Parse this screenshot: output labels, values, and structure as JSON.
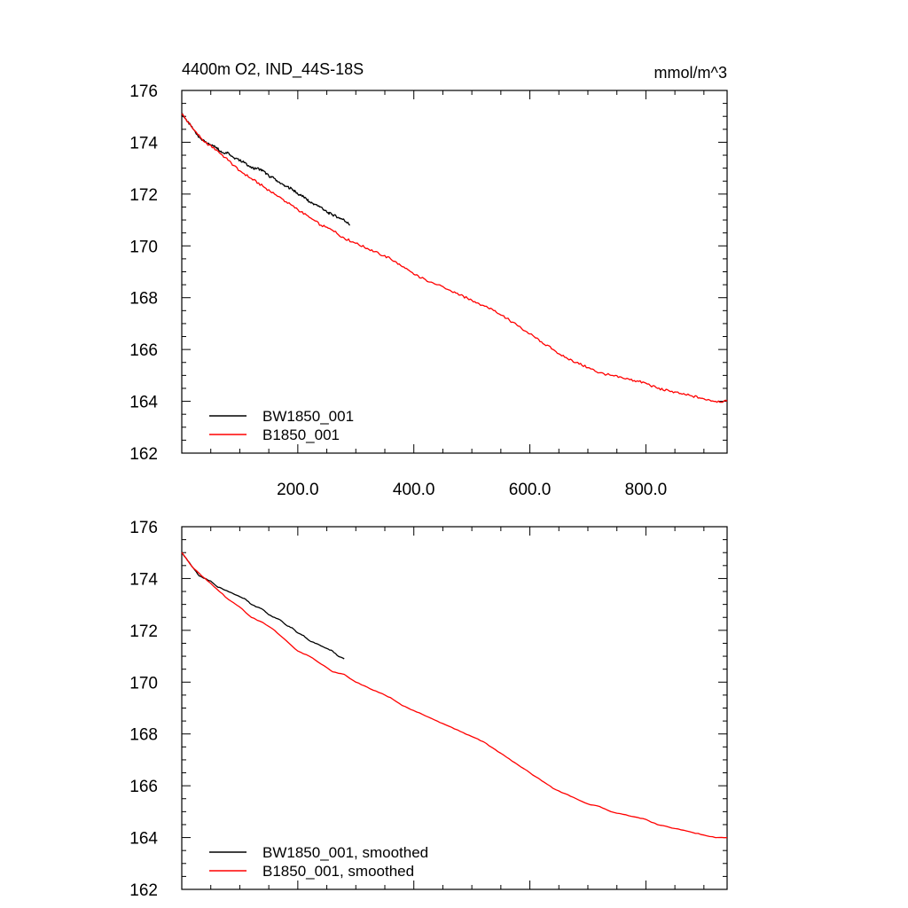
{
  "chart_data": [
    {
      "type": "line",
      "title": "4400m O2, IND_44S-18S",
      "units": "mmol/m^3",
      "xlabel": "",
      "ylabel": "",
      "xlim": [
        0,
        940
      ],
      "ylim": [
        162,
        176
      ],
      "y_ticks": [
        "176",
        "174",
        "172",
        "170",
        "168",
        "166",
        "164",
        "162"
      ],
      "x_ticks": [
        "200.0",
        "400.0",
        "600.0",
        "800.0"
      ],
      "legend_position": "bottom-left",
      "series": [
        {
          "name": "BW1850_001",
          "color": "#000000",
          "x": [
            0,
            10,
            20,
            30,
            40,
            50,
            60,
            70,
            80,
            90,
            100,
            110,
            120,
            130,
            140,
            150,
            160,
            170,
            180,
            190,
            200,
            210,
            220,
            230,
            240,
            250,
            260,
            270,
            280,
            290
          ],
          "y": [
            175.1,
            174.8,
            174.5,
            174.2,
            174.0,
            173.9,
            173.8,
            173.6,
            173.6,
            173.4,
            173.3,
            173.2,
            173.0,
            173.0,
            172.9,
            172.7,
            172.6,
            172.4,
            172.3,
            172.2,
            172.0,
            171.9,
            171.7,
            171.6,
            171.5,
            171.3,
            171.2,
            171.1,
            171.0,
            170.8
          ]
        },
        {
          "name": "B1850_001",
          "color": "#ff0000",
          "x": [
            0,
            20,
            40,
            60,
            80,
            100,
            120,
            140,
            160,
            180,
            200,
            220,
            240,
            260,
            280,
            300,
            320,
            340,
            360,
            380,
            400,
            420,
            440,
            460,
            480,
            500,
            520,
            540,
            560,
            580,
            600,
            620,
            640,
            660,
            680,
            700,
            720,
            740,
            760,
            780,
            800,
            820,
            840,
            860,
            880,
            900,
            920,
            940
          ],
          "y": [
            175.1,
            174.5,
            174.0,
            173.7,
            173.3,
            172.9,
            172.6,
            172.3,
            172.0,
            171.7,
            171.4,
            171.1,
            170.8,
            170.6,
            170.3,
            170.1,
            169.9,
            169.7,
            169.5,
            169.2,
            168.9,
            168.7,
            168.5,
            168.3,
            168.1,
            167.9,
            167.7,
            167.5,
            167.2,
            166.9,
            166.6,
            166.3,
            166.0,
            165.7,
            165.5,
            165.3,
            165.1,
            165.0,
            164.9,
            164.8,
            164.7,
            164.5,
            164.4,
            164.3,
            164.2,
            164.1,
            164.0,
            164.0
          ]
        }
      ]
    },
    {
      "type": "line",
      "title": "",
      "xlabel": "",
      "ylabel": "",
      "xlim": [
        0,
        940
      ],
      "ylim": [
        162,
        176
      ],
      "y_ticks": [
        "176",
        "174",
        "172",
        "170",
        "168",
        "166",
        "164",
        "162"
      ],
      "legend_position": "bottom-left",
      "series": [
        {
          "name": "BW1850_001, smoothed",
          "color": "#000000",
          "x": [
            0,
            10,
            20,
            30,
            40,
            50,
            60,
            70,
            80,
            90,
            100,
            110,
            120,
            130,
            140,
            150,
            160,
            170,
            180,
            190,
            200,
            210,
            220,
            230,
            240,
            250,
            260,
            270,
            280
          ],
          "y": [
            175.0,
            174.7,
            174.4,
            174.1,
            174.0,
            173.9,
            173.7,
            173.6,
            173.5,
            173.4,
            173.3,
            173.2,
            173.0,
            172.9,
            172.8,
            172.6,
            172.5,
            172.4,
            172.2,
            172.1,
            171.9,
            171.8,
            171.6,
            171.5,
            171.4,
            171.3,
            171.2,
            171.0,
            170.9
          ]
        },
        {
          "name": "B1850_001, smoothed",
          "color": "#ff0000",
          "x": [
            0,
            20,
            40,
            60,
            80,
            100,
            120,
            140,
            160,
            180,
            200,
            220,
            240,
            260,
            280,
            300,
            320,
            340,
            360,
            380,
            400,
            420,
            440,
            460,
            480,
            500,
            520,
            540,
            560,
            580,
            600,
            620,
            640,
            660,
            680,
            700,
            720,
            740,
            760,
            780,
            800,
            820,
            840,
            860,
            880,
            900,
            920,
            940
          ],
          "y": [
            175.0,
            174.4,
            174.0,
            173.6,
            173.2,
            172.9,
            172.5,
            172.3,
            172.0,
            171.6,
            171.2,
            171.0,
            170.7,
            170.4,
            170.3,
            170.0,
            169.8,
            169.6,
            169.4,
            169.1,
            168.9,
            168.7,
            168.5,
            168.3,
            168.1,
            167.9,
            167.7,
            167.4,
            167.1,
            166.8,
            166.5,
            166.2,
            165.9,
            165.7,
            165.5,
            165.3,
            165.2,
            165.0,
            164.9,
            164.8,
            164.7,
            164.5,
            164.4,
            164.3,
            164.2,
            164.1,
            164.0,
            164.0
          ]
        }
      ]
    }
  ]
}
